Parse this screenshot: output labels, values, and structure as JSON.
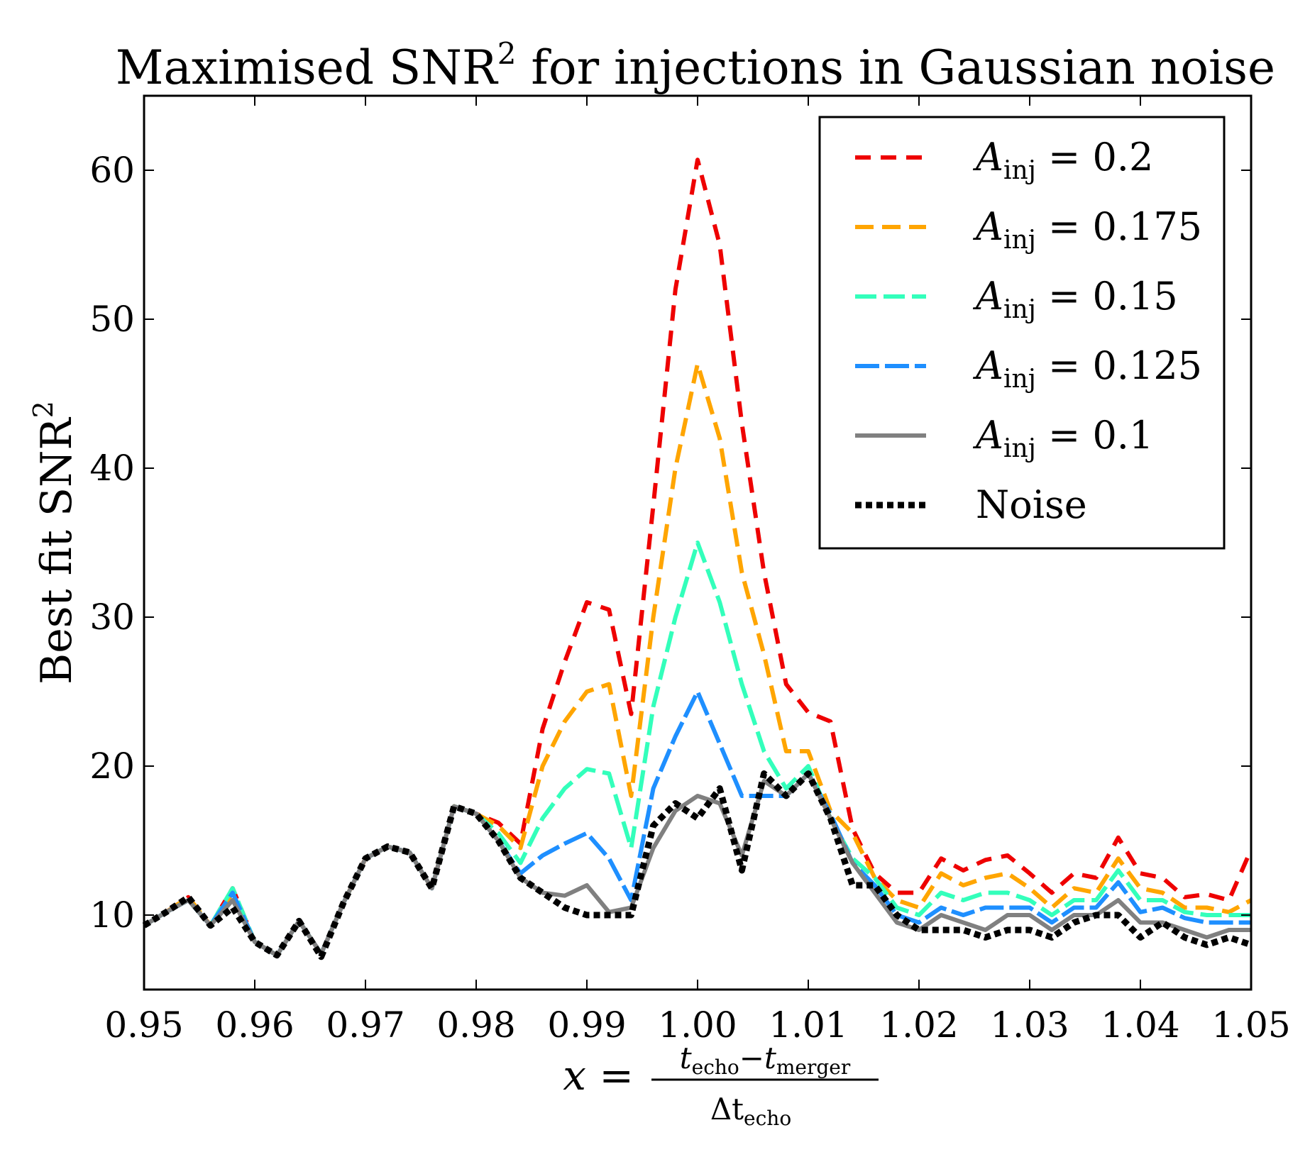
{
  "chart_data": {
    "type": "line",
    "title": "Maximised SNR",
    "title_sup": "2",
    "title_rest": " for injections in Gaussian noise",
    "ylabel": "Best fit SNR",
    "ylabel_sup": "2",
    "xlabel": {
      "lhs": "x =",
      "num_a": "t",
      "num_a_sub": "echo",
      "num_op": "−",
      "num_b": "t",
      "num_b_sub": "merger",
      "den": "Δt",
      "den_sub": "echo"
    },
    "xlim": [
      0.95,
      1.05
    ],
    "ylim": [
      5,
      65
    ],
    "xticks": [
      "0.95",
      "0.96",
      "0.97",
      "0.98",
      "0.99",
      "1.00",
      "1.01",
      "1.02",
      "1.03",
      "1.04",
      "1.05"
    ],
    "yticks": [
      "10",
      "20",
      "30",
      "40",
      "50",
      "60"
    ],
    "legend_position": "top-right",
    "x": [
      0.95,
      0.952,
      0.954,
      0.956,
      0.958,
      0.96,
      0.962,
      0.964,
      0.966,
      0.968,
      0.97,
      0.972,
      0.974,
      0.976,
      0.978,
      0.98,
      0.982,
      0.984,
      0.986,
      0.988,
      0.99,
      0.992,
      0.994,
      0.996,
      0.998,
      1.0,
      1.002,
      1.004,
      1.006,
      1.008,
      1.01,
      1.012,
      1.014,
      1.016,
      1.018,
      1.02,
      1.022,
      1.024,
      1.026,
      1.028,
      1.03,
      1.032,
      1.034,
      1.036,
      1.038,
      1.04,
      1.042,
      1.044,
      1.046,
      1.048,
      1.05
    ],
    "series": [
      {
        "name": "A",
        "sub": "inj",
        "value": " = 0.2",
        "color": "#ee0000",
        "dash": "22,14",
        "width": 6,
        "values": [
          9.3,
          10.2,
          11.2,
          9.3,
          11.8,
          8.2,
          7.3,
          9.6,
          7.4,
          10.8,
          13.8,
          14.6,
          14.2,
          11.8,
          17.3,
          16.8,
          16.2,
          14.8,
          22.5,
          27.0,
          31.0,
          30.5,
          23.5,
          37.5,
          52.0,
          60.7,
          55.0,
          43.0,
          33.0,
          25.5,
          23.6,
          23.0,
          15.8,
          12.8,
          11.5,
          11.5,
          13.8,
          13.0,
          13.7,
          14.0,
          12.8,
          11.5,
          12.8,
          12.5,
          15.2,
          12.8,
          12.5,
          11.2,
          11.4,
          11.0,
          14.4
        ]
      },
      {
        "name": "A",
        "sub": "inj",
        "value": " = 0.175",
        "color": "#ffa500",
        "dash": "26,12",
        "width": 6,
        "values": [
          9.3,
          10.2,
          11.2,
          9.3,
          11.5,
          8.2,
          7.3,
          9.6,
          7.4,
          10.8,
          13.8,
          14.6,
          14.2,
          11.8,
          17.3,
          16.8,
          16.0,
          14.5,
          20.0,
          23.0,
          25.0,
          25.5,
          18.0,
          30.0,
          40.0,
          47.0,
          42.0,
          33.0,
          27.5,
          21.0,
          21.0,
          17.0,
          15.5,
          12.5,
          11.0,
          10.5,
          12.8,
          12.0,
          12.5,
          12.8,
          11.8,
          10.5,
          11.8,
          11.5,
          13.8,
          11.8,
          11.5,
          10.5,
          10.5,
          10.2,
          11.0
        ]
      },
      {
        "name": "A",
        "sub": "inj",
        "value": " = 0.15",
        "color": "#33ffbb",
        "dash": "30,10",
        "width": 6,
        "values": [
          9.3,
          10.2,
          11.0,
          9.3,
          11.8,
          8.2,
          7.3,
          9.6,
          7.4,
          10.8,
          13.8,
          14.6,
          14.2,
          11.8,
          17.3,
          16.8,
          15.5,
          13.5,
          16.5,
          18.5,
          19.8,
          19.5,
          14.5,
          24.0,
          30.0,
          35.0,
          31.0,
          25.5,
          21.0,
          18.5,
          20.0,
          16.5,
          13.8,
          12.5,
          10.5,
          10.0,
          11.5,
          11.0,
          11.5,
          11.5,
          11.0,
          10.0,
          11.0,
          11.0,
          13.0,
          11.0,
          11.0,
          10.2,
          10.0,
          10.0,
          10.0
        ]
      },
      {
        "name": "A",
        "sub": "inj",
        "value": " = 0.125",
        "color": "#1e8fff",
        "dash": "34,8",
        "width": 6,
        "values": [
          9.3,
          10.2,
          11.0,
          9.3,
          11.5,
          8.2,
          7.3,
          9.6,
          7.4,
          10.8,
          13.8,
          14.6,
          14.2,
          11.8,
          17.3,
          16.8,
          15.0,
          12.8,
          14.0,
          14.8,
          15.5,
          13.8,
          11.0,
          18.5,
          22.0,
          25.0,
          21.5,
          18.0,
          18.0,
          18.0,
          19.5,
          16.8,
          13.5,
          12.0,
          10.0,
          9.5,
          10.5,
          10.0,
          10.5,
          10.5,
          10.5,
          9.5,
          10.5,
          10.5,
          12.2,
          10.2,
          10.5,
          9.8,
          9.5,
          9.5,
          9.5
        ]
      },
      {
        "name": "A",
        "sub": "inj",
        "value": " = 0.1",
        "color": "#808080",
        "dash": "",
        "width": 6,
        "values": [
          9.3,
          10.2,
          11.0,
          9.3,
          11.0,
          8.2,
          7.3,
          9.6,
          7.4,
          10.8,
          13.8,
          14.6,
          14.2,
          11.8,
          17.3,
          16.8,
          15.0,
          12.5,
          11.5,
          11.3,
          12.0,
          10.2,
          10.5,
          14.5,
          17.0,
          18.0,
          17.5,
          14.0,
          19.0,
          18.0,
          19.5,
          16.5,
          13.5,
          11.5,
          9.5,
          9.0,
          10.0,
          9.5,
          9.0,
          10.0,
          10.0,
          9.0,
          10.0,
          10.0,
          11.0,
          9.5,
          9.5,
          9.0,
          8.5,
          9.0,
          9.0
        ]
      },
      {
        "name": "Noise",
        "sub": "",
        "value": "",
        "color": "#000000",
        "dash": "9,6",
        "width": 9,
        "values": [
          9.3,
          10.2,
          11.2,
          9.3,
          10.5,
          8.2,
          7.3,
          9.6,
          7.2,
          10.8,
          13.8,
          14.6,
          14.2,
          11.8,
          17.3,
          16.8,
          15.0,
          12.5,
          11.5,
          10.5,
          10.0,
          10.0,
          10.0,
          16.0,
          17.5,
          16.5,
          18.5,
          13.0,
          19.5,
          18.0,
          19.5,
          16.5,
          12.0,
          12.0,
          10.0,
          9.0,
          9.0,
          9.0,
          8.5,
          9.0,
          9.0,
          8.5,
          9.5,
          10.0,
          10.0,
          8.5,
          9.5,
          8.5,
          8.0,
          8.5,
          8.0
        ]
      }
    ]
  }
}
